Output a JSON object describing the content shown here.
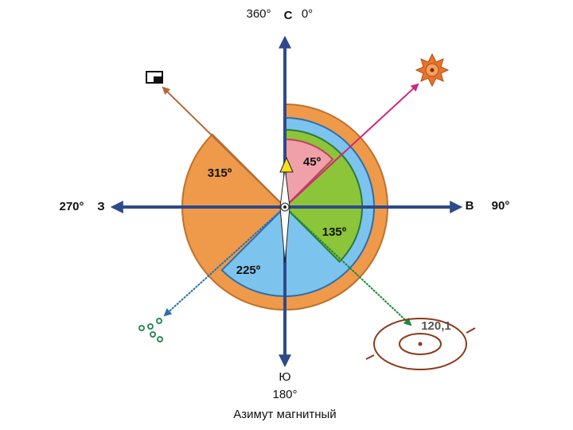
{
  "axes": {
    "north_left": "360°",
    "north": "С",
    "north_right": "0°",
    "west_deg": "270°",
    "west": "З",
    "east": "В",
    "east_deg": "90°",
    "south": "Ю",
    "south_deg": "180°"
  },
  "sectors": [
    "45º",
    "135º",
    "225º",
    "315º"
  ],
  "mark": "120,1",
  "caption": "Азимут магнитный"
}
